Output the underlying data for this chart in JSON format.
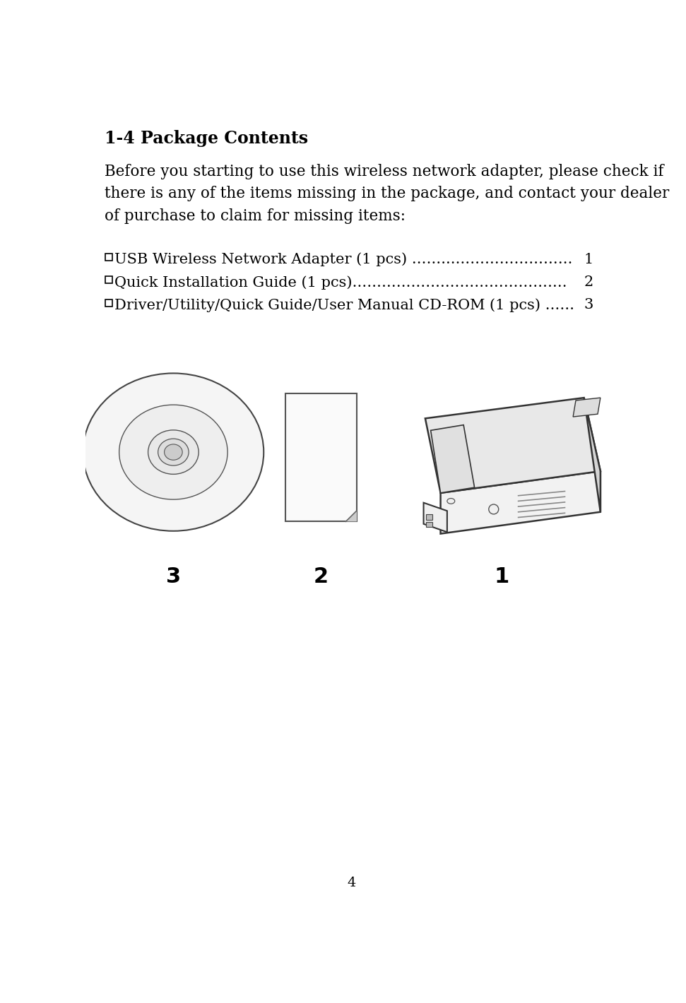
{
  "title": "1-4 Package Contents",
  "body_text": "Before you starting to use this wireless network adapter, please check if\nthere is any of the items missing in the package, and contact your dealer\nof purchase to claim for missing items:",
  "item1_box": "□",
  "item1_text": "USB Wireless Network Adapter (1 pcs) ……...……………………",
  "item1_num": "1",
  "item2_box": "□",
  "item2_text": "Quick Installation Guide (1 pcs)……………….…………………….",
  "item2_num": "2",
  "item3_box": "□",
  "item3_text": "Driver/Utility/Quick Guide/User Manual CD-ROM (1 pcs) ……",
  "item3_num": "3",
  "label1": "1",
  "label2": "2",
  "label3": "3",
  "page_number": "4",
  "bg_color": "#ffffff",
  "text_color": "#000000",
  "title_fontsize": 17,
  "body_fontsize": 15.5,
  "item_fontsize": 15,
  "label_fontsize": 22
}
